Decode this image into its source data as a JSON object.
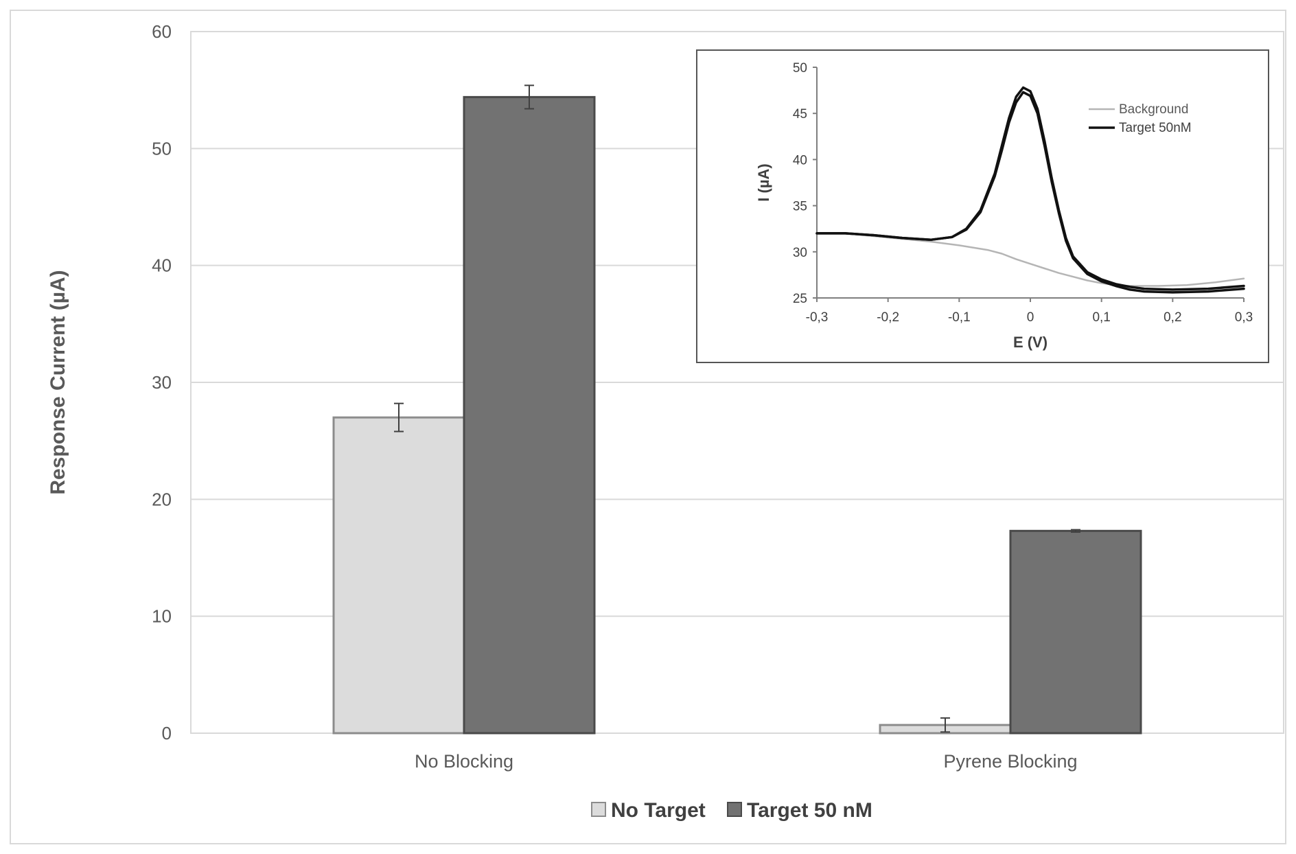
{
  "chart_data": [
    {
      "type": "bar",
      "title": "",
      "xlabel": "",
      "ylabel": "Response Current (µA)",
      "ylim": [
        0,
        60
      ],
      "yticks": [
        0,
        10,
        20,
        30,
        40,
        50,
        60
      ],
      "categories": [
        "No Blocking",
        "Pyrene Blocking"
      ],
      "series": [
        {
          "name": "No Target",
          "values": [
            27.0,
            0.7
          ],
          "errors": [
            1.2,
            0.6
          ],
          "color": "#dcdcdc"
        },
        {
          "name": "Target 50 nM",
          "values": [
            54.4,
            17.3
          ],
          "errors": [
            1.0,
            0.1
          ],
          "color": "#727272"
        }
      ],
      "grid": true,
      "legend_position": "bottom"
    },
    {
      "type": "line",
      "title": "",
      "xlabel": "E (V)",
      "ylabel": "I (µA)",
      "xlim": [
        -0.3,
        0.3
      ],
      "ylim": [
        25,
        50
      ],
      "xticks": [
        "-0,3",
        "-0,2",
        "-0,1",
        "0",
        "0,1",
        "0,2",
        "0,3"
      ],
      "yticks": [
        "25",
        "30",
        "35",
        "40",
        "45",
        "50"
      ],
      "grid": false,
      "legend_position": "top-right",
      "series": [
        {
          "name": "Background",
          "color": "#b5b5b5",
          "x": [
            -0.3,
            -0.26,
            -0.22,
            -0.18,
            -0.14,
            -0.1,
            -0.06,
            -0.04,
            -0.02,
            0.0,
            0.02,
            0.04,
            0.06,
            0.08,
            0.1,
            0.12,
            0.14,
            0.18,
            0.22,
            0.26,
            0.3
          ],
          "y": [
            32.0,
            32.0,
            31.7,
            31.4,
            31.1,
            30.7,
            30.2,
            29.8,
            29.2,
            28.7,
            28.2,
            27.7,
            27.3,
            26.9,
            26.6,
            26.4,
            26.3,
            26.3,
            26.4,
            26.7,
            27.1
          ]
        },
        {
          "name": "Target 50nM",
          "color": "#111111",
          "x": [
            -0.3,
            -0.26,
            -0.22,
            -0.18,
            -0.14,
            -0.11,
            -0.09,
            -0.07,
            -0.05,
            -0.04,
            -0.03,
            -0.02,
            -0.01,
            0.0,
            0.01,
            0.02,
            0.03,
            0.04,
            0.05,
            0.06,
            0.08,
            0.1,
            0.12,
            0.14,
            0.16,
            0.2,
            0.25,
            0.3
          ],
          "y": [
            32.0,
            32.0,
            31.8,
            31.5,
            31.3,
            31.6,
            32.5,
            34.5,
            38.5,
            41.5,
            44.5,
            46.8,
            47.8,
            47.4,
            45.5,
            42.0,
            38.0,
            34.5,
            31.5,
            29.5,
            27.8,
            27.0,
            26.5,
            26.2,
            26.0,
            25.9,
            26.0,
            26.3
          ]
        },
        {
          "name": "",
          "color": "#111111",
          "x": [
            -0.3,
            -0.26,
            -0.22,
            -0.18,
            -0.14,
            -0.11,
            -0.09,
            -0.07,
            -0.05,
            -0.04,
            -0.03,
            -0.02,
            -0.01,
            0.0,
            0.01,
            0.02,
            0.03,
            0.04,
            0.05,
            0.06,
            0.08,
            0.1,
            0.12,
            0.14,
            0.16,
            0.2,
            0.25,
            0.3
          ],
          "y": [
            32.0,
            32.0,
            31.8,
            31.5,
            31.3,
            31.6,
            32.4,
            34.3,
            38.2,
            41.0,
            44.0,
            46.2,
            47.3,
            46.9,
            45.0,
            41.5,
            37.6,
            34.2,
            31.2,
            29.3,
            27.6,
            26.8,
            26.3,
            25.9,
            25.7,
            25.6,
            25.7,
            26.0
          ]
        }
      ]
    }
  ]
}
